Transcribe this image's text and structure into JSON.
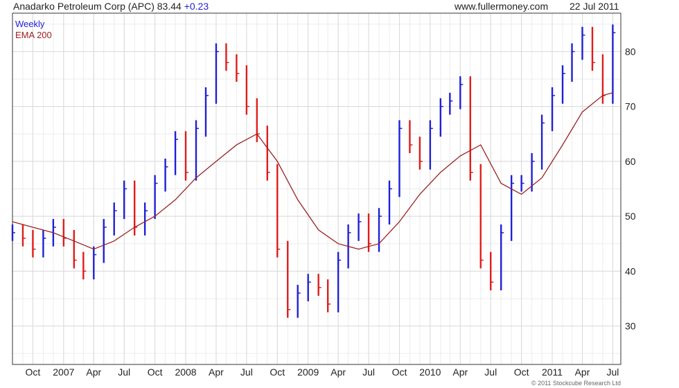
{
  "header": {
    "title": "Anadarko Petroleum Corp (APC)",
    "last_price": "83.44",
    "change": "+0.23",
    "site": "www.fullermoney.com",
    "date": "22 Jul 2011"
  },
  "legend": {
    "weekly_label": "Weekly",
    "ema_label": "EMA 200"
  },
  "footer": {
    "copyright": "© 2011 Stockcube Research Ltd"
  },
  "colors": {
    "up": "#1f1fd8",
    "down": "#e01b1b",
    "ema": "#9b2020",
    "grid": "#d9d9d9",
    "change_text": "#1f1fd8"
  },
  "chart_data": {
    "type": "line",
    "title": "Anadarko Petroleum Corp (APC)",
    "xlabel": "",
    "ylabel": "",
    "ylim": [
      23,
      87
    ],
    "yticks": [
      30,
      40,
      50,
      60,
      70,
      80
    ],
    "grid": true,
    "legend": "top-left",
    "xticks": [
      {
        "date": "2006-10-01",
        "label": "Oct"
      },
      {
        "date": "2007-01-01",
        "label": "2007"
      },
      {
        "date": "2007-04-01",
        "label": "Apr"
      },
      {
        "date": "2007-07-01",
        "label": "Jul"
      },
      {
        "date": "2007-10-01",
        "label": "Oct"
      },
      {
        "date": "2008-01-01",
        "label": "2008"
      },
      {
        "date": "2008-04-01",
        "label": "Apr"
      },
      {
        "date": "2008-07-01",
        "label": "Jul"
      },
      {
        "date": "2008-10-01",
        "label": "Oct"
      },
      {
        "date": "2009-01-01",
        "label": "2009"
      },
      {
        "date": "2009-04-01",
        "label": "Apr"
      },
      {
        "date": "2009-07-01",
        "label": "Jul"
      },
      {
        "date": "2009-10-01",
        "label": "Oct"
      },
      {
        "date": "2010-01-01",
        "label": "2010"
      },
      {
        "date": "2010-04-01",
        "label": "Apr"
      },
      {
        "date": "2010-07-01",
        "label": "Jul"
      },
      {
        "date": "2010-10-01",
        "label": "Oct"
      },
      {
        "date": "2011-01-01",
        "label": "2011"
      },
      {
        "date": "2011-04-01",
        "label": "Apr"
      },
      {
        "date": "2011-07-01",
        "label": "Jul"
      }
    ],
    "series": [
      {
        "name": "Weekly",
        "style": "bars",
        "x": [
          "2006-08-01",
          "2006-09-01",
          "2006-10-01",
          "2006-11-01",
          "2006-12-01",
          "2007-01-01",
          "2007-02-01",
          "2007-03-01",
          "2007-04-01",
          "2007-05-01",
          "2007-06-01",
          "2007-07-01",
          "2007-08-01",
          "2007-09-01",
          "2007-10-01",
          "2007-11-01",
          "2007-12-01",
          "2008-01-01",
          "2008-02-01",
          "2008-03-01",
          "2008-04-01",
          "2008-05-01",
          "2008-06-01",
          "2008-07-01",
          "2008-08-01",
          "2008-09-01",
          "2008-10-01",
          "2008-11-01",
          "2008-12-01",
          "2009-01-01",
          "2009-02-01",
          "2009-03-01",
          "2009-04-01",
          "2009-05-01",
          "2009-06-01",
          "2009-07-01",
          "2009-08-01",
          "2009-09-01",
          "2009-10-01",
          "2009-11-01",
          "2009-12-01",
          "2010-01-01",
          "2010-02-01",
          "2010-03-01",
          "2010-04-01",
          "2010-05-01",
          "2010-06-01",
          "2010-07-01",
          "2010-08-01",
          "2010-09-01",
          "2010-10-01",
          "2010-11-01",
          "2010-12-01",
          "2011-01-01",
          "2011-02-01",
          "2011-03-01",
          "2011-04-01",
          "2011-05-01",
          "2011-06-01",
          "2011-07-01"
        ],
        "values": [
          47,
          46,
          44,
          46,
          48,
          46,
          42,
          40,
          43,
          48,
          51,
          55,
          48,
          51,
          56,
          59,
          64,
          58,
          66,
          72,
          80,
          78,
          76,
          70,
          65,
          58,
          44,
          33,
          36,
          38,
          37,
          34,
          42,
          47,
          49,
          45,
          50,
          55,
          66,
          63,
          60,
          66,
          70,
          71,
          74,
          58,
          42,
          38,
          47,
          56,
          56,
          60,
          67,
          72,
          76,
          80,
          83,
          78,
          72,
          83.44
        ]
      },
      {
        "name": "EMA 200",
        "style": "line",
        "x": [
          "2006-08-01",
          "2006-10-01",
          "2006-12-01",
          "2007-02-01",
          "2007-04-01",
          "2007-06-01",
          "2007-08-01",
          "2007-10-01",
          "2007-12-01",
          "2008-02-01",
          "2008-04-01",
          "2008-06-01",
          "2008-08-01",
          "2008-10-01",
          "2008-12-01",
          "2009-02-01",
          "2009-04-01",
          "2009-06-01",
          "2009-08-01",
          "2009-10-01",
          "2009-12-01",
          "2010-02-01",
          "2010-04-01",
          "2010-06-01",
          "2010-08-01",
          "2010-10-01",
          "2010-12-01",
          "2011-02-01",
          "2011-04-01",
          "2011-06-01",
          "2011-07-01"
        ],
        "values": [
          49,
          48,
          47,
          45.5,
          44,
          45.5,
          48,
          50,
          53,
          57,
          60,
          63,
          65,
          60,
          53,
          47.5,
          45,
          44,
          45,
          49,
          54,
          58,
          61,
          63,
          56,
          54,
          57,
          63,
          69,
          72,
          72.5
        ]
      }
    ]
  }
}
